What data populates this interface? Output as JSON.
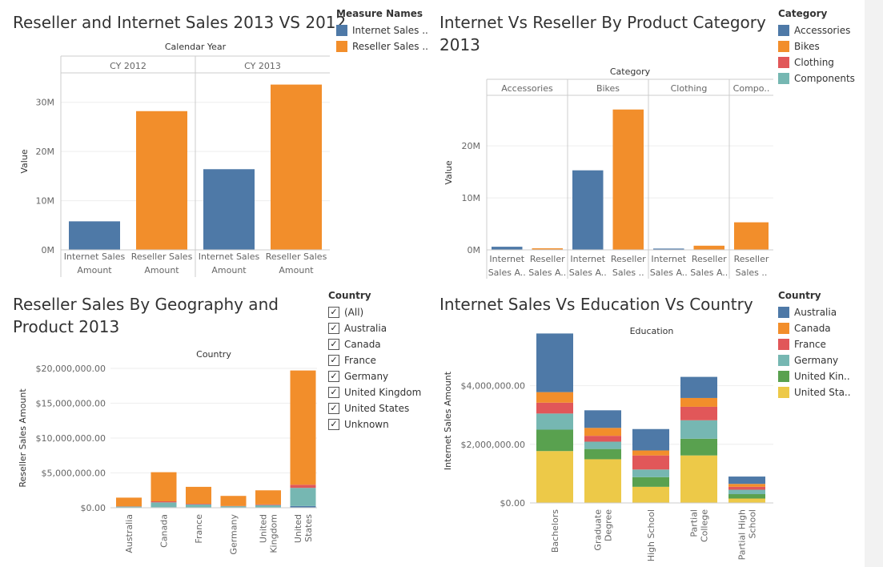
{
  "panels": {
    "p1_title": "Reseller and Internet Sales 2013 VS 2012",
    "p2_title": "Internet Vs Reseller By Product Category\n2013",
    "p3_title": "Reseller Sales By Geography and\nProduct 2013",
    "p4_title": "Internet Sales Vs Education Vs Country"
  },
  "legends": {
    "measure": {
      "title": "Measure Names",
      "items": [
        {
          "label": "Internet Sales ..",
          "color": "#4e79a7"
        },
        {
          "label": "Reseller Sales ..",
          "color": "#f28e2b"
        }
      ]
    },
    "category": {
      "title": "Category",
      "items": [
        {
          "label": "Accessories",
          "color": "#4e79a7"
        },
        {
          "label": "Bikes",
          "color": "#f28e2b"
        },
        {
          "label": "Clothing",
          "color": "#e15759"
        },
        {
          "label": "Components",
          "color": "#76b7b2"
        }
      ]
    },
    "country_filter": {
      "title": "Country",
      "items": [
        {
          "label": "(All)"
        },
        {
          "label": "Australia"
        },
        {
          "label": "Canada"
        },
        {
          "label": "France"
        },
        {
          "label": "Germany"
        },
        {
          "label": "United Kingdom"
        },
        {
          "label": "United States"
        },
        {
          "label": "Unknown"
        }
      ]
    },
    "country_color": {
      "title": "Country",
      "items": [
        {
          "label": "Australia",
          "color": "#4e79a7"
        },
        {
          "label": "Canada",
          "color": "#f28e2b"
        },
        {
          "label": "France",
          "color": "#e15759"
        },
        {
          "label": "Germany",
          "color": "#76b7b2"
        },
        {
          "label": "United Kin..",
          "color": "#59a14f"
        },
        {
          "label": "United Sta..",
          "color": "#edc948"
        }
      ]
    }
  },
  "chart_data": [
    {
      "type": "bar",
      "title": "Reseller and Internet Sales 2013 VS 2012",
      "header_title": "Calendar Year",
      "ylabel": "Value",
      "ylim": [
        0,
        35000000
      ],
      "yticks": [
        {
          "v": 0,
          "label": "0M"
        },
        {
          "v": 10000000,
          "label": "10M"
        },
        {
          "v": 20000000,
          "label": "20M"
        },
        {
          "v": 30000000,
          "label": "30M"
        }
      ],
      "groups": [
        {
          "name": "CY 2012",
          "bars": [
            {
              "label": "Internet Sales Amount",
              "value": 5800000,
              "color": "#4e79a7"
            },
            {
              "label": "Reseller Sales Amount",
              "value": 28200000,
              "color": "#f28e2b"
            }
          ]
        },
        {
          "name": "CY 2013",
          "bars": [
            {
              "label": "Internet Sales Amount",
              "value": 16400000,
              "color": "#4e79a7"
            },
            {
              "label": "Reseller Sales Amount",
              "value": 33600000,
              "color": "#f28e2b"
            }
          ]
        }
      ]
    },
    {
      "type": "bar",
      "title": "Internet Vs Reseller By Product Category 2013",
      "header_title": "Category",
      "ylabel": "Value",
      "ylim": [
        0,
        28500000
      ],
      "yticks": [
        {
          "v": 0,
          "label": "0M"
        },
        {
          "v": 10000000,
          "label": "10M"
        },
        {
          "v": 20000000,
          "label": "20M"
        }
      ],
      "groups": [
        {
          "name": "Accessories",
          "bars": [
            {
              "label": "Internet Sales A..",
              "value": 600000,
              "color": "#4e79a7"
            },
            {
              "label": "Reseller Sales A..",
              "value": 300000,
              "color": "#f28e2b"
            }
          ]
        },
        {
          "name": "Bikes",
          "bars": [
            {
              "label": "Internet Sales A..",
              "value": 15300000,
              "color": "#4e79a7"
            },
            {
              "label": "Reseller Sales ..",
              "value": 27000000,
              "color": "#f28e2b"
            }
          ]
        },
        {
          "name": "Clothing",
          "bars": [
            {
              "label": "Internet Sales A..",
              "value": 250000,
              "color": "#4e79a7"
            },
            {
              "label": "Reseller Sales A..",
              "value": 800000,
              "color": "#f28e2b"
            }
          ]
        },
        {
          "name": "Compo..",
          "bars": [
            {
              "label": "Reseller Sales ..",
              "value": 5300000,
              "color": "#f28e2b"
            }
          ]
        }
      ]
    },
    {
      "type": "bar",
      "stacked": true,
      "title": "Reseller Sales By Geography and Product 2013",
      "header_title": "Country",
      "ylabel": "Reseller Sales Amount",
      "ylim": [
        0,
        20000000
      ],
      "yticks": [
        {
          "v": 0,
          "label": "$0.00"
        },
        {
          "v": 5000000,
          "label": "$5,000,000.00"
        },
        {
          "v": 10000000,
          "label": "$10,000,000.00"
        },
        {
          "v": 15000000,
          "label": "$15,000,000.00"
        },
        {
          "v": 20000000,
          "label": "$20,000,000.00"
        }
      ],
      "categories": [
        "Australia",
        "Canada",
        "France",
        "Germany",
        "United Kingdom",
        "United States"
      ],
      "category_labels": [
        [
          "Australia"
        ],
        [
          "Canada"
        ],
        [
          "France"
        ],
        [
          "Germany"
        ],
        [
          "United",
          "Kingdom"
        ],
        [
          "United",
          "States"
        ]
      ],
      "series": [
        {
          "name": "Accessories",
          "color": "#4e79a7",
          "values": [
            20000,
            70000,
            35000,
            20000,
            35000,
            250000
          ]
        },
        {
          "name": "Components",
          "color": "#76b7b2",
          "values": [
            150000,
            700000,
            450000,
            200000,
            350000,
            2600000
          ]
        },
        {
          "name": "Clothing",
          "color": "#e15759",
          "values": [
            40000,
            150000,
            90000,
            40000,
            90000,
            450000
          ]
        },
        {
          "name": "Bikes",
          "color": "#f28e2b",
          "values": [
            1240000,
            4180000,
            2425000,
            1440000,
            2025000,
            16400000
          ]
        }
      ]
    },
    {
      "type": "bar",
      "stacked": true,
      "title": "Internet Sales Vs Education Vs Country",
      "header_title": "Education",
      "ylabel": "Internet Sales Amount",
      "ylim": [
        0,
        5600000
      ],
      "yticks": [
        {
          "v": 0,
          "label": "$0.00"
        },
        {
          "v": 2000000,
          "label": "$2,000,000.00"
        },
        {
          "v": 4000000,
          "label": "$4,000,000.00"
        }
      ],
      "categories": [
        "Bachelors",
        "Graduate Degree",
        "High School",
        "Partial College",
        "Partial High School"
      ],
      "category_labels": [
        [
          "Bachelors"
        ],
        [
          "Graduate",
          "Degree"
        ],
        [
          "High School"
        ],
        [
          "Partial",
          "College"
        ],
        [
          "Partial High",
          "School"
        ]
      ],
      "series": [
        {
          "name": "United States",
          "color": "#edc948",
          "values": [
            1770000,
            1490000,
            550000,
            1620000,
            150000
          ]
        },
        {
          "name": "United Kingdom",
          "color": "#59a14f",
          "values": [
            730000,
            350000,
            330000,
            570000,
            150000
          ]
        },
        {
          "name": "Germany",
          "color": "#76b7b2",
          "values": [
            550000,
            250000,
            260000,
            630000,
            150000
          ]
        },
        {
          "name": "France",
          "color": "#e15759",
          "values": [
            370000,
            200000,
            480000,
            460000,
            100000
          ]
        },
        {
          "name": "Canada",
          "color": "#f28e2b",
          "values": [
            360000,
            270000,
            170000,
            300000,
            100000
          ]
        },
        {
          "name": "Australia",
          "color": "#4e79a7",
          "values": [
            2000000,
            600000,
            730000,
            720000,
            250000
          ]
        }
      ]
    }
  ]
}
